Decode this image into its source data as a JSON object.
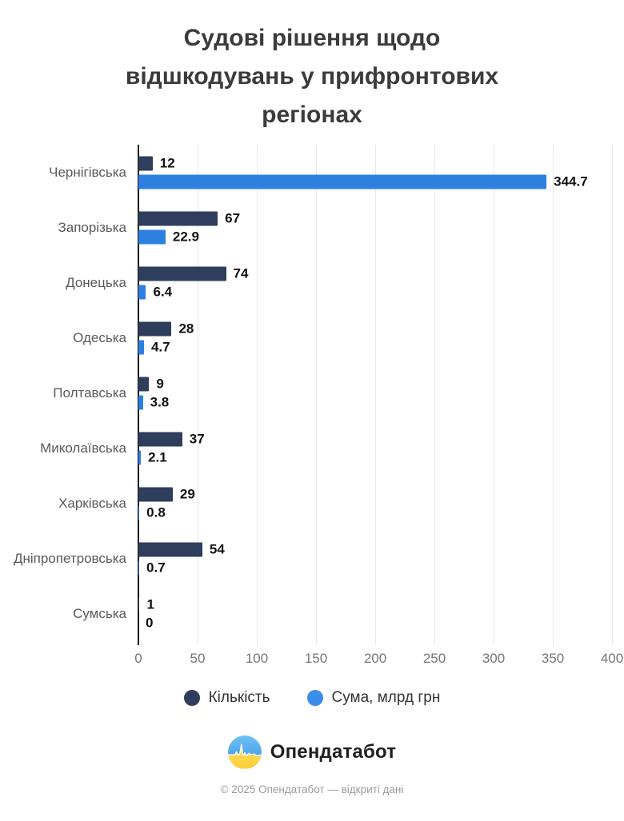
{
  "title_lines": [
    "Судові рішення щодо",
    "відшкодувань у прифронтових",
    "регіонах"
  ],
  "chart_data": {
    "type": "bar",
    "orientation": "horizontal",
    "title": "Судові рішення щодо відшкодувань у прифронтових регіонах",
    "categories": [
      "Чернігівська",
      "Запорізька",
      "Донецька",
      "Одеська",
      "Полтавська",
      "Миколаївська",
      "Харківська",
      "Дніпропетровська",
      "Сумська"
    ],
    "series": [
      {
        "name": "Кількість",
        "color": "#2e3e5c",
        "values": [
          12,
          67,
          74,
          28,
          9,
          37,
          29,
          54,
          1
        ],
        "labels": [
          "12",
          "67",
          "74",
          "28",
          "9",
          "37",
          "29",
          "54",
          "1"
        ]
      },
      {
        "name": "Сума, млрд грн",
        "color": "#2e80e0",
        "values": [
          344.7,
          22.9,
          6.4,
          4.7,
          3.8,
          2.1,
          0.8,
          0.7,
          0
        ],
        "labels": [
          "344.7",
          "22.9",
          "6.4",
          "4.7",
          "3.8",
          "2.1",
          "0.8",
          "0.7",
          "0"
        ]
      }
    ],
    "xlim": [
      0,
      400
    ],
    "x_ticks": [
      "0",
      "50",
      "100",
      "150",
      "200",
      "250",
      "300",
      "350",
      "400"
    ],
    "grid": true,
    "legend_position": "bottom"
  },
  "footer": {
    "brand": "Опендатабот",
    "copyright": "© 2025 Опендатабот — відкриті дані"
  },
  "colors": {
    "count_bar": "#2e3e5c",
    "sum_bar": "#2e80e0",
    "legend_sum": "#3b8ee8",
    "axis": "#161616",
    "grid": "#e7e7e7",
    "logo_blue": "#4aa7ee",
    "logo_yellow": "#ffd84d"
  }
}
